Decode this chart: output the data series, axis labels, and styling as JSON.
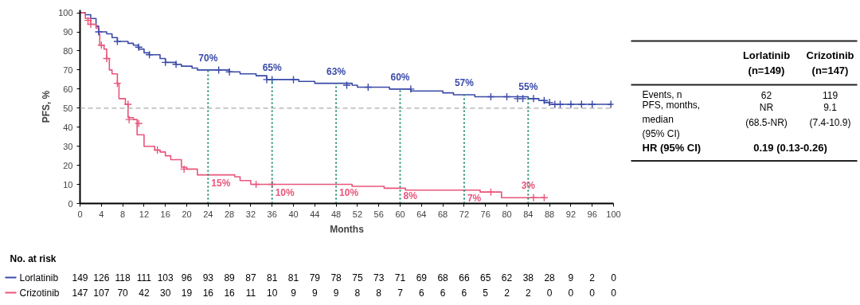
{
  "chart_data": {
    "type": "step",
    "xlabel": "Months",
    "ylabel": "PFS, %",
    "xlim": [
      0,
      100
    ],
    "ylim": [
      0,
      101.5
    ],
    "xticks": [
      0,
      4,
      8,
      12,
      16,
      20,
      24,
      28,
      32,
      36,
      40,
      44,
      48,
      52,
      56,
      60,
      64,
      68,
      72,
      76,
      80,
      84,
      88,
      92,
      96,
      100
    ],
    "yticks": [
      0,
      10,
      20,
      30,
      40,
      50,
      60,
      70,
      80,
      90,
      100
    ],
    "grid": false,
    "legend": "bottom left",
    "line_style": "solid",
    "series": [
      {
        "name": "Lorlatinib",
        "color": "#3a4aa8",
        "x": [
          0,
          1,
          2,
          3,
          3.5,
          5,
          6,
          7,
          9,
          10,
          11,
          12,
          13,
          15,
          16,
          18,
          19,
          21,
          22,
          28,
          30,
          33,
          35,
          41,
          44,
          51,
          52,
          58,
          60,
          62,
          68,
          70,
          74,
          84,
          86,
          87,
          88,
          99.5
        ],
        "values": [
          100,
          99,
          97,
          93,
          90,
          89,
          87,
          85,
          84,
          83,
          81,
          79,
          78,
          76,
          74,
          73,
          72,
          71,
          70,
          69,
          68,
          67,
          65,
          64,
          63,
          62,
          61,
          60,
          60,
          59,
          58,
          57,
          56,
          55,
          54,
          53,
          52,
          52
        ]
      },
      {
        "name": "Crizotinib",
        "color": "#e8557a",
        "x": [
          0,
          1,
          2,
          3,
          3.5,
          3.7,
          4.5,
          5,
          5.5,
          6,
          7,
          7.3,
          8.5,
          9,
          10,
          10.7,
          12,
          14,
          15,
          16,
          17,
          19,
          20,
          22,
          29,
          30,
          32,
          51,
          57,
          61,
          75,
          79,
          87
        ],
        "values": [
          100,
          97,
          94,
          92,
          89,
          83,
          81,
          76,
          70,
          68,
          63,
          55,
          52,
          45,
          44,
          36,
          30,
          28,
          27,
          25,
          23,
          19,
          18,
          15,
          14,
          12,
          10,
          9,
          8,
          7,
          6,
          3,
          3
        ]
      },
      {
        "type": "scatter",
        "marker": "cross",
        "color": "#3a4aa8",
        "x": [
          3.5,
          7,
          11,
          13,
          16,
          18,
          26,
          28,
          35,
          36,
          40,
          50,
          54,
          62,
          77,
          80,
          82,
          83,
          85,
          87,
          88,
          89,
          90,
          92,
          94,
          96,
          99.5
        ],
        "values": [
          90,
          85,
          82,
          78,
          74,
          73,
          70,
          69,
          65,
          65,
          65,
          62,
          61,
          60,
          56,
          56,
          55,
          55,
          55,
          54,
          53,
          52,
          52,
          52,
          52,
          52,
          52
        ]
      },
      {
        "type": "scatter",
        "marker": "cross",
        "color": "#e8557a",
        "x": [
          1.5,
          2,
          4,
          5,
          7,
          9,
          9.2,
          11,
          14.5,
          19.5,
          33,
          36,
          77,
          85,
          87
        ],
        "values": [
          96,
          94,
          83,
          76,
          63,
          52,
          44,
          42,
          28,
          18,
          10,
          10,
          6,
          3,
          3
        ]
      }
    ],
    "ref_lines": [
      {
        "axis": "y",
        "value": 50,
        "color": "#aaaaaa",
        "line_style": "dashed"
      },
      {
        "axis": "x",
        "value": 24,
        "color": "#1a8a6a",
        "line_style": "dotted"
      },
      {
        "axis": "x",
        "value": 36,
        "color": "#1a8a6a",
        "line_style": "dotted"
      },
      {
        "axis": "x",
        "value": 48,
        "color": "#1a8a6a",
        "line_style": "dotted"
      },
      {
        "axis": "x",
        "value": 60,
        "color": "#1a8a6a",
        "line_style": "dotted"
      },
      {
        "axis": "x",
        "value": 72,
        "color": "#1a8a6a",
        "line_style": "dotted"
      },
      {
        "axis": "x",
        "value": 84,
        "color": "#1a8a6a",
        "line_style": "dotted"
      }
    ],
    "annotations": [
      {
        "text": "70%",
        "x": 24,
        "y": 70
      },
      {
        "text": "65%",
        "x": 36,
        "y": 65
      },
      {
        "text": "63%",
        "x": 48,
        "y": 63
      },
      {
        "text": "60%",
        "x": 60,
        "y": 60
      },
      {
        "text": "57%",
        "x": 72,
        "y": 57
      },
      {
        "text": "55%",
        "x": 84,
        "y": 55
      },
      {
        "text": "15%",
        "x": 24,
        "y": 15
      },
      {
        "text": "10%",
        "x": 36,
        "y": 10
      },
      {
        "text": "10%",
        "x": 48,
        "y": 10
      },
      {
        "text": "8%",
        "x": 60,
        "y": 8
      },
      {
        "text": "7%",
        "x": 72,
        "y": 7
      },
      {
        "text": "3%",
        "x": 84,
        "y": 3
      },
      "No. at risk",
      "149 126 118 111 103 96 93 89 87 81 81 79 78 75 73 71 69 68 66 65 62 38 28 9 2 0",
      "147 107 70 42 30 19 16 16 11 10 9 9 9 8 8 7 6 6 6 5 2 2 0 0 0 0",
      "Lorlatinib\n(n=149)",
      "Crizotinib\n(n=147)",
      "Events, n",
      "62",
      "119",
      "PFS, months,\nmedian\n(95% CI)",
      "NR\n(68.5-NR)",
      "9.1\n(7.4-10.9)",
      "HR (95% CI)",
      "0.19 (0.13-0.26)"
    ]
  }
}
